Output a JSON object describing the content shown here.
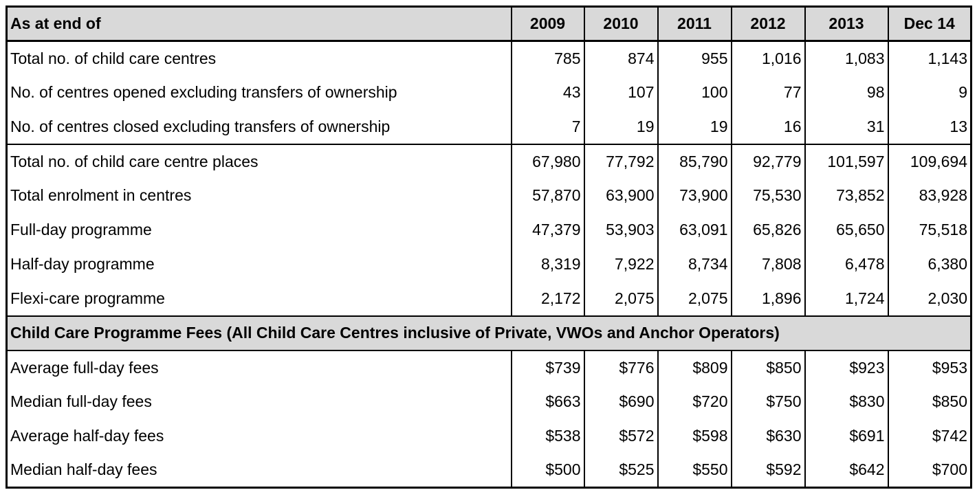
{
  "table": {
    "header": {
      "label": "As at end of",
      "columns": [
        "2009",
        "2010",
        "2011",
        "2012",
        "2013",
        "Dec 14"
      ]
    },
    "group1": [
      {
        "label": "Total no. of child care centres",
        "values": [
          "785",
          "874",
          "955",
          "1,016",
          "1,083",
          "1,143"
        ]
      },
      {
        "label": "No. of centres opened excluding transfers of ownership",
        "values": [
          "43",
          "107",
          "100",
          "77",
          "98",
          "9"
        ]
      },
      {
        "label": "No. of centres closed excluding transfers of ownership",
        "values": [
          "7",
          "19",
          "19",
          "16",
          "31",
          "13"
        ]
      }
    ],
    "group2": [
      {
        "label": "Total no. of child care centre places",
        "values": [
          "67,980",
          "77,792",
          "85,790",
          "92,779",
          "101,597",
          "109,694"
        ]
      },
      {
        "label": "Total enrolment in centres",
        "values": [
          "57,870",
          "63,900",
          "73,900",
          "75,530",
          "73,852",
          "83,928"
        ]
      },
      {
        "label": "Full-day programme",
        "values": [
          "47,379",
          "53,903",
          "63,091",
          "65,826",
          "65,650",
          "75,518"
        ]
      },
      {
        "label": "Half-day programme",
        "values": [
          "8,319",
          "7,922",
          "8,734",
          "7,808",
          "6,478",
          "6,380"
        ]
      },
      {
        "label": "Flexi-care programme",
        "values": [
          "2,172",
          "2,075",
          "2,075",
          "1,896",
          "1,724",
          "2,030"
        ]
      }
    ],
    "section_title": "Child Care Programme Fees (All Child Care Centres inclusive of Private, VWOs and Anchor Operators)",
    "group3": [
      {
        "label": "Average full-day fees",
        "values": [
          "$739",
          "$776",
          "$809",
          "$850",
          "$923",
          "$953"
        ]
      },
      {
        "label": "Median full-day fees",
        "values": [
          "$663",
          "$690",
          "$720",
          "$750",
          "$830",
          "$850"
        ]
      },
      {
        "label": "Average half-day fees",
        "values": [
          "$538",
          "$572",
          "$598",
          "$630",
          "$691",
          "$742"
        ]
      },
      {
        "label": "Median half-day fees",
        "values": [
          "$500",
          "$525",
          "$550",
          "$592",
          "$642",
          "$700"
        ]
      }
    ]
  }
}
